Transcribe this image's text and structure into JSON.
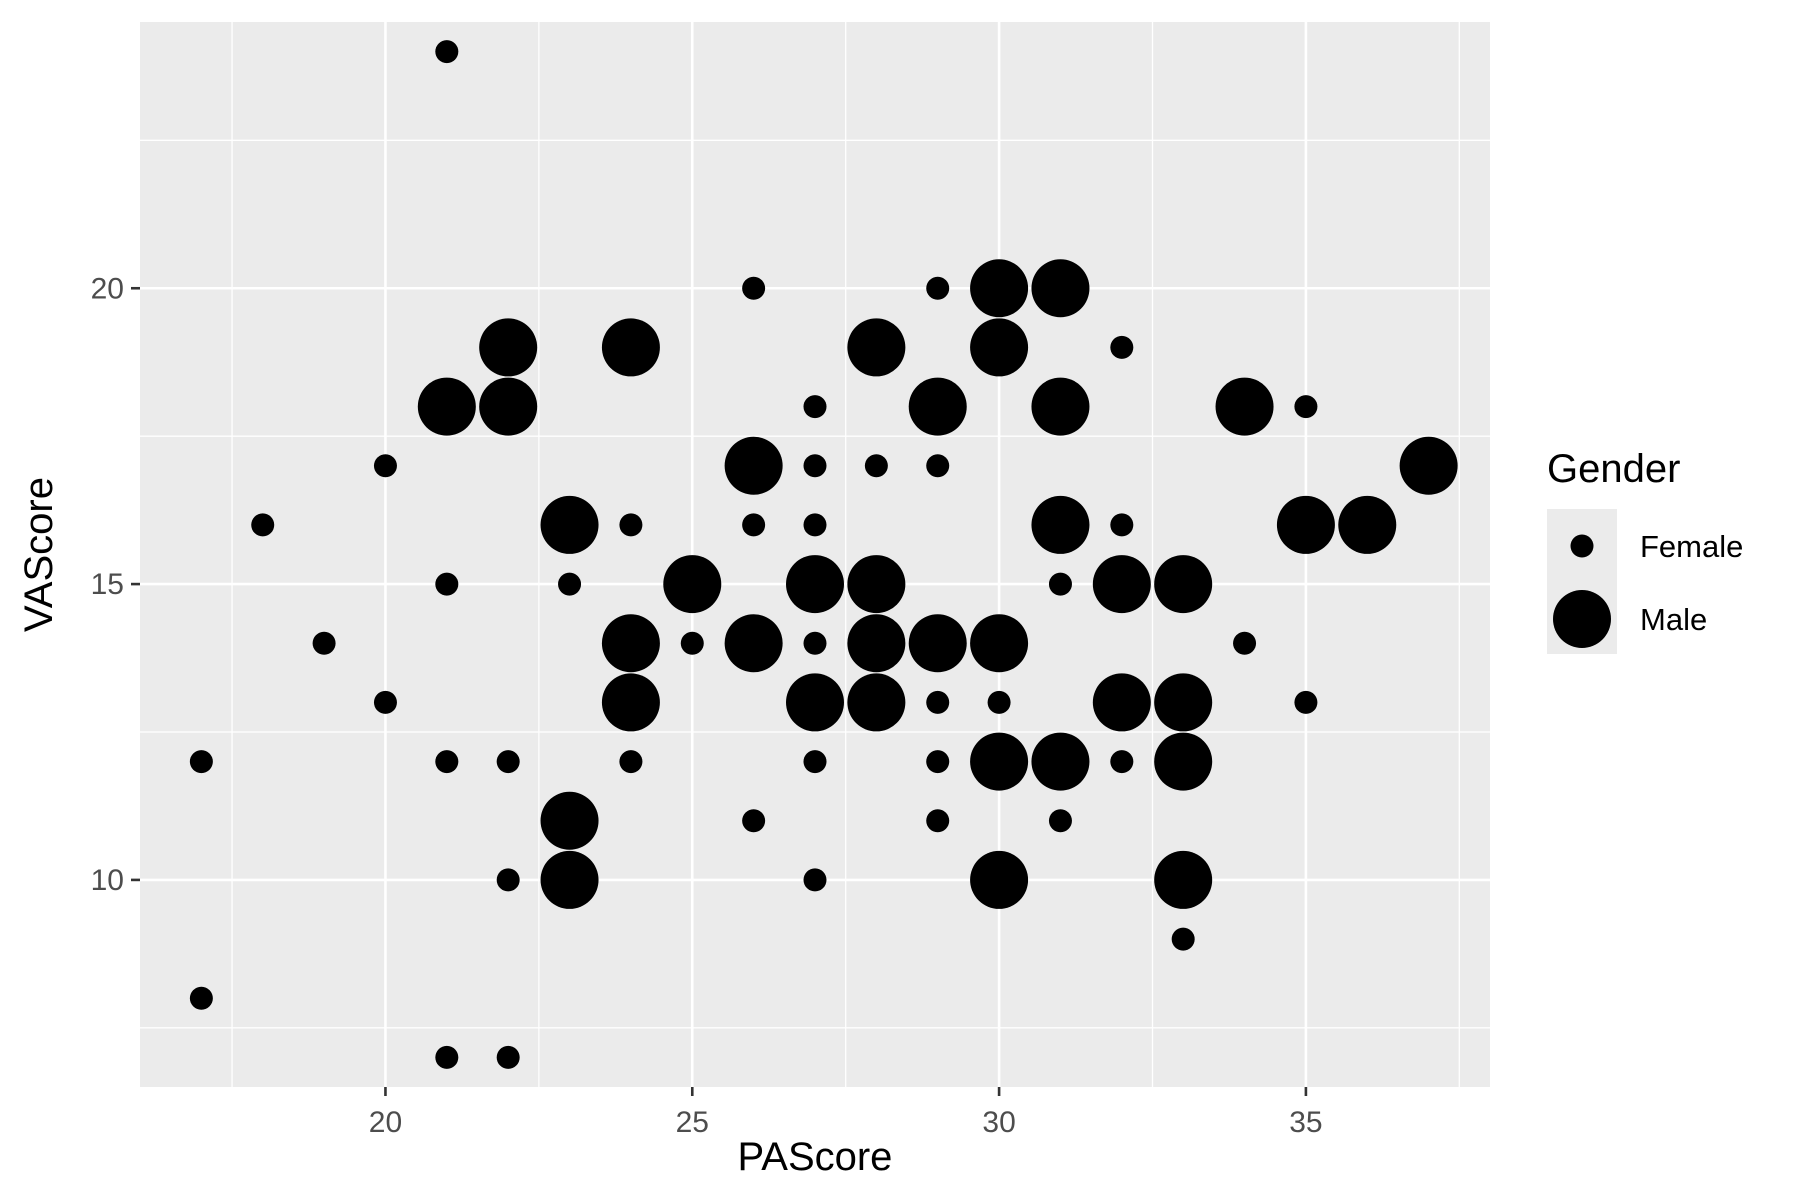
{
  "chart_data": {
    "type": "scatter",
    "xlabel": "PAScore",
    "ylabel": "VAScore",
    "xlim": [
      16,
      38
    ],
    "ylim": [
      6.5,
      24.5
    ],
    "x_ticks": [
      20,
      25,
      30,
      35
    ],
    "y_ticks": [
      10,
      15,
      20
    ],
    "grid": true,
    "legend": {
      "title": "Gender",
      "position": "right",
      "entries": [
        {
          "label": "Female",
          "size": "small"
        },
        {
          "label": "Male",
          "size": "large"
        }
      ]
    },
    "series": [
      {
        "name": "Female",
        "points": [
          [
            17,
            8
          ],
          [
            17,
            12
          ],
          [
            18,
            16
          ],
          [
            19,
            14
          ],
          [
            20,
            17
          ],
          [
            20,
            13
          ],
          [
            21,
            24
          ],
          [
            21,
            15
          ],
          [
            21,
            12
          ],
          [
            21,
            7
          ],
          [
            22,
            12
          ],
          [
            22,
            10
          ],
          [
            22,
            7
          ],
          [
            23,
            15
          ],
          [
            24,
            16
          ],
          [
            24,
            12
          ],
          [
            25,
            14
          ],
          [
            26,
            20
          ],
          [
            26,
            16
          ],
          [
            26,
            11
          ],
          [
            27,
            18
          ],
          [
            27,
            17
          ],
          [
            27,
            16
          ],
          [
            27,
            14
          ],
          [
            27,
            12
          ],
          [
            27,
            10
          ],
          [
            28,
            17
          ],
          [
            29,
            20
          ],
          [
            29,
            17
          ],
          [
            29,
            13
          ],
          [
            29,
            12
          ],
          [
            29,
            11
          ],
          [
            30,
            13
          ],
          [
            31,
            15
          ],
          [
            31,
            11
          ],
          [
            32,
            19
          ],
          [
            32,
            16
          ],
          [
            32,
            12
          ],
          [
            33,
            9
          ],
          [
            34,
            14
          ],
          [
            35,
            18
          ],
          [
            35,
            13
          ]
        ]
      },
      {
        "name": "Male",
        "points": [
          [
            21,
            18
          ],
          [
            22,
            19
          ],
          [
            22,
            18
          ],
          [
            23,
            16
          ],
          [
            23,
            11
          ],
          [
            23,
            10
          ],
          [
            24,
            19
          ],
          [
            24,
            14
          ],
          [
            24,
            13
          ],
          [
            25,
            15
          ],
          [
            26,
            17
          ],
          [
            26,
            14
          ],
          [
            27,
            15
          ],
          [
            27,
            13
          ],
          [
            28,
            19
          ],
          [
            28,
            15
          ],
          [
            28,
            14
          ],
          [
            28,
            13
          ],
          [
            29,
            18
          ],
          [
            29,
            14
          ],
          [
            30,
            20
          ],
          [
            30,
            19
          ],
          [
            30,
            14
          ],
          [
            30,
            12
          ],
          [
            30,
            10
          ],
          [
            31,
            20
          ],
          [
            31,
            18
          ],
          [
            31,
            16
          ],
          [
            31,
            12
          ],
          [
            32,
            15
          ],
          [
            32,
            13
          ],
          [
            33,
            15
          ],
          [
            33,
            13
          ],
          [
            33,
            12
          ],
          [
            33,
            10
          ],
          [
            34,
            18
          ],
          [
            35,
            16
          ],
          [
            36,
            16
          ],
          [
            37,
            17
          ]
        ]
      }
    ]
  }
}
